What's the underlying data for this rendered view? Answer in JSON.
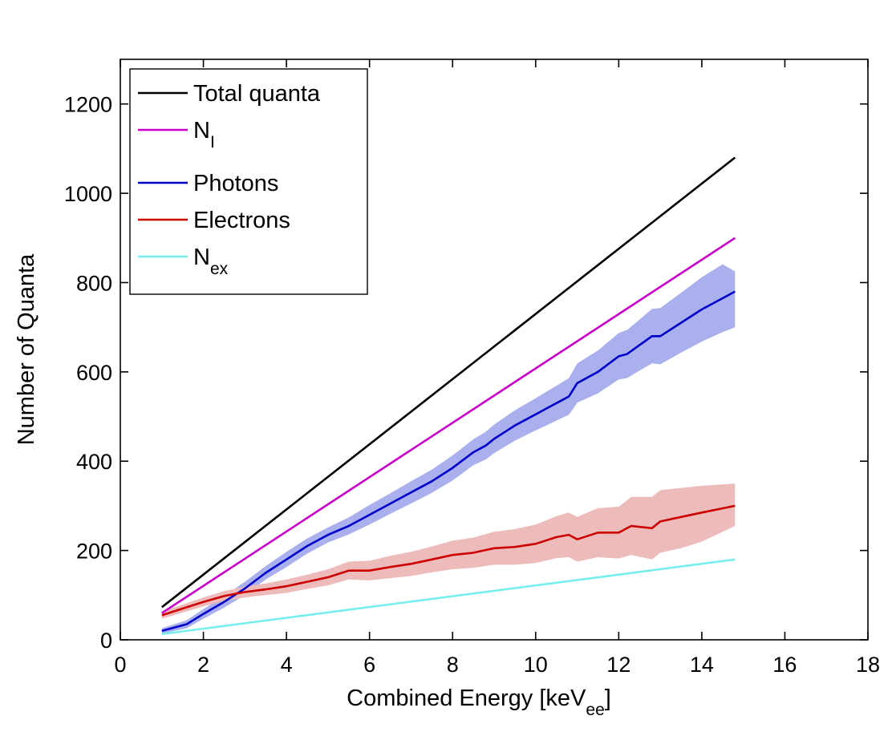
{
  "chart_data": {
    "type": "line",
    "title": "",
    "xlabel": {
      "main": "Combined Energy [keV",
      "sub": "ee",
      "suffix": "]"
    },
    "ylabel": "Number of Quanta",
    "xlim": [
      0,
      18
    ],
    "ylim": [
      0,
      1300
    ],
    "xticks": [
      0,
      2,
      4,
      6,
      8,
      10,
      12,
      14,
      16,
      18
    ],
    "yticks": [
      0,
      200,
      400,
      600,
      800,
      1000,
      1200
    ],
    "grid": false,
    "legend_position": "top-left",
    "series": [
      {
        "name": "Total quanta",
        "name_sub": "",
        "color": "#000000",
        "x": [
          1,
          14.8
        ],
        "y": [
          73,
          1080
        ]
      },
      {
        "name": "N",
        "name_sub": "I",
        "color": "#cc00cc",
        "x": [
          1,
          14.8
        ],
        "y": [
          60,
          900
        ]
      },
      {
        "name": "Photons",
        "name_sub": "",
        "color": "#0000cc",
        "band_color": "#aab0ee",
        "x": [
          1.0,
          1.2,
          1.6,
          2.0,
          2.5,
          3.0,
          3.5,
          4.0,
          4.5,
          5.0,
          5.5,
          6.0,
          6.5,
          7.0,
          7.5,
          8.0,
          8.5,
          8.8,
          9.0,
          9.5,
          10.0,
          10.3,
          10.5,
          10.8,
          11.0,
          11.5,
          12.0,
          12.2,
          12.5,
          12.8,
          13.0,
          13.5,
          14.0,
          14.5,
          14.8
        ],
        "y": [
          20,
          25,
          35,
          58,
          85,
          115,
          150,
          180,
          210,
          235,
          255,
          280,
          305,
          330,
          355,
          385,
          420,
          435,
          450,
          480,
          505,
          520,
          530,
          545,
          575,
          600,
          635,
          640,
          660,
          680,
          680,
          710,
          740,
          765,
          780
        ],
        "lower": [
          14,
          18,
          26,
          47,
          72,
          100,
          135,
          163,
          193,
          218,
          236,
          258,
          282,
          305,
          329,
          357,
          391,
          404,
          418,
          446,
          469,
          482,
          491,
          504,
          531,
          552,
          583,
          586,
          603,
          619,
          617,
          643,
          668,
          689,
          700
        ],
        "upper": [
          26,
          32,
          44,
          69,
          98,
          130,
          165,
          197,
          227,
          252,
          274,
          302,
          328,
          355,
          381,
          413,
          449,
          466,
          482,
          514,
          541,
          558,
          569,
          586,
          619,
          648,
          687,
          694,
          717,
          741,
          743,
          777,
          812,
          841,
          825
        ]
      },
      {
        "name": "Electrons",
        "name_sub": "",
        "color": "#cc0000",
        "band_color": "#eebbbb",
        "x": [
          1.0,
          1.5,
          2.0,
          2.5,
          3.0,
          3.5,
          4.0,
          4.5,
          5.0,
          5.5,
          6.0,
          6.5,
          7.0,
          7.5,
          8.0,
          8.5,
          9.0,
          9.5,
          10.0,
          10.5,
          10.8,
          11.0,
          11.5,
          12.0,
          12.3,
          12.8,
          13.0,
          13.5,
          14.0,
          14.8
        ],
        "y": [
          55,
          70,
          85,
          98,
          107,
          113,
          120,
          130,
          140,
          155,
          155,
          163,
          170,
          180,
          190,
          195,
          205,
          208,
          215,
          230,
          235,
          225,
          240,
          240,
          255,
          250,
          265,
          275,
          285,
          300
        ],
        "lower": [
          47,
          61,
          75,
          87,
          95,
          100,
          105,
          114,
          122,
          135,
          133,
          138,
          143,
          151,
          158,
          161,
          168,
          168,
          172,
          183,
          185,
          175,
          185,
          182,
          190,
          180,
          195,
          205,
          220,
          255
        ],
        "upper": [
          63,
          79,
          95,
          109,
          119,
          126,
          135,
          146,
          158,
          175,
          177,
          188,
          197,
          209,
          222,
          229,
          242,
          248,
          258,
          277,
          285,
          275,
          295,
          298,
          320,
          320,
          335,
          340,
          345,
          350
        ]
      },
      {
        "name": "N",
        "name_sub": "ex",
        "color": "#77eeee",
        "x": [
          1,
          14.8
        ],
        "y": [
          13,
          180
        ]
      }
    ]
  }
}
